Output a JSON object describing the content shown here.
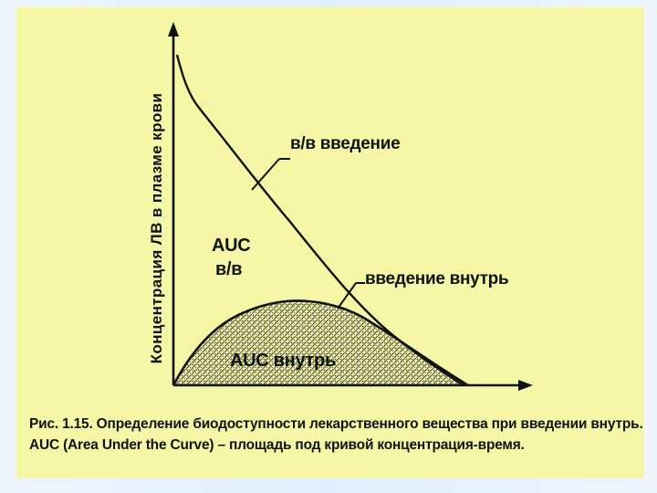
{
  "diagram": {
    "y_axis_label": "Концентрация ЛВ в плазме крови",
    "curve_iv_label": "в/в введение",
    "curve_oral_label": "введение внутрь",
    "auc_iv_label_line1": "AUC",
    "auc_iv_label_line2": "в/в",
    "auc_oral_label": "AUC внутрь"
  },
  "caption": {
    "line1": "Рис. 1.15. Определение биодоступности лекарственного вещества при введении внутрь.",
    "line2": "AUC (Area Under the Curve) – площадь под кривой концентрация-время."
  },
  "colors": {
    "slide_background": "#f6f7a6",
    "page_background": "#e6f0ff",
    "ink": "#111111",
    "hatch": "#555555"
  }
}
